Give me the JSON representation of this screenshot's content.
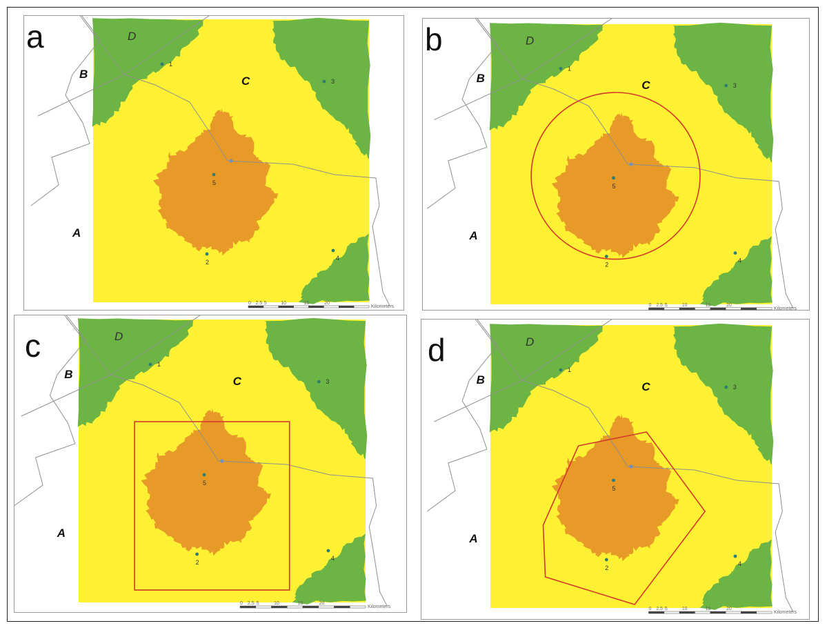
{
  "panels": [
    {
      "id": "a",
      "label": "a",
      "overlay": "none"
    },
    {
      "id": "b",
      "label": "b",
      "overlay": "circle"
    },
    {
      "id": "c",
      "label": "c",
      "overlay": "square"
    },
    {
      "id": "d",
      "label": "d",
      "overlay": "polygon"
    }
  ],
  "zones": {
    "A": "A",
    "B": "B",
    "C": "C",
    "D": "D"
  },
  "points": [
    "1",
    "2",
    "3",
    "4",
    "5"
  ],
  "scale_bar": {
    "ticks": [
      "0",
      "2.5",
      "5",
      "10",
      "15",
      "20"
    ],
    "unit": "Kilometers"
  },
  "colors": {
    "green_zone": "#6cb444",
    "yellow_zone": "#fef033",
    "orange_zone": "#e89a28",
    "overlay": "#d43a2a",
    "points": "#2e7d6f"
  }
}
